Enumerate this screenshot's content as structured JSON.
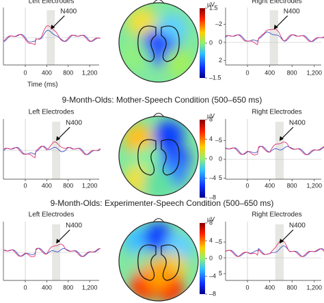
{
  "xticks": [
    0,
    400,
    800,
    {
      "value": 1200,
      "label": "1,200"
    }
  ],
  "x_label": "Time (ms)",
  "rows": [
    {
      "left": {
        "label": "Left Electrodes",
        "annotation": "N400"
      },
      "right": {
        "label": "Right Electrodes",
        "annotation": "N400",
        "yticks": [
          {
            "value": -2,
            "label": "–2"
          },
          0,
          2
        ]
      },
      "colorbar": {
        "unit": "μV",
        "ticks": [
          1.5,
          0,
          {
            "value": -1.5,
            "label": "–1.5"
          }
        ]
      }
    },
    {
      "title": "9-Month-Olds: Mother-Speech Condition (500–650 ms)",
      "left": {
        "label": "Left Electrodes",
        "annotation": "N400"
      },
      "right": {
        "label": "Right Electrodes",
        "annotation": "N400",
        "yticks": [
          {
            "value": -5,
            "label": "–5"
          },
          0,
          5
        ]
      },
      "colorbar": {
        "unit": "μV",
        "ticks": [
          8,
          4,
          0,
          {
            "value": -4,
            "label": "–4"
          },
          {
            "value": -8,
            "label": "–8"
          }
        ]
      }
    },
    {
      "title": "9-Month-Olds: Experimenter-Speech Condition (500–650 ms)",
      "left": {
        "label": "Left Electrodes",
        "annotation": "N400"
      },
      "right": {
        "label": "Right Electrodes",
        "annotation": "N400",
        "yticks": [
          {
            "value": -5,
            "label": "–5"
          },
          0,
          5
        ]
      },
      "colorbar": {
        "unit": "μV",
        "ticks": [
          8,
          4,
          0,
          {
            "value": -4,
            "label": "–4"
          },
          {
            "value": -8,
            "label": "–8"
          }
        ]
      }
    }
  ]
}
